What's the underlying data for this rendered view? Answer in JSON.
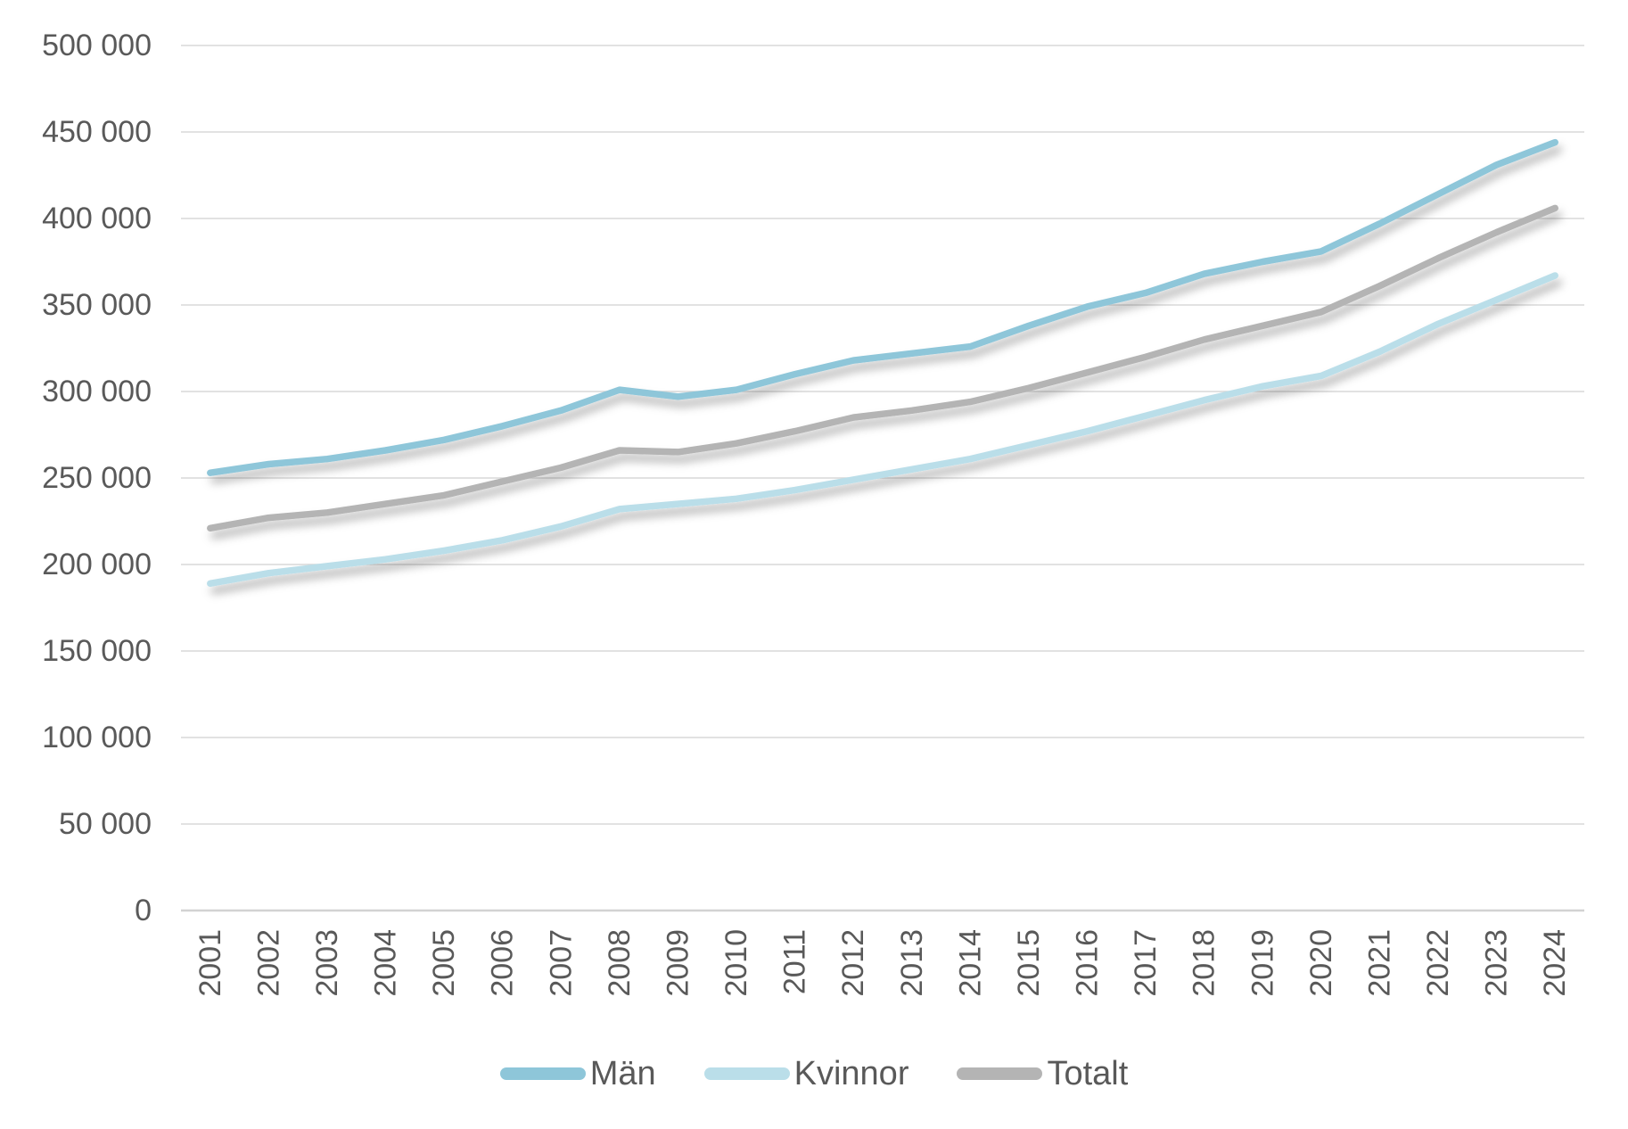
{
  "chart_data": {
    "type": "line",
    "title": "",
    "xlabel": "",
    "ylabel": "",
    "x": [
      2001,
      2002,
      2003,
      2004,
      2005,
      2006,
      2007,
      2008,
      2009,
      2010,
      2011,
      2012,
      2013,
      2014,
      2015,
      2016,
      2017,
      2018,
      2019,
      2020,
      2021,
      2022,
      2023,
      2024
    ],
    "series": [
      {
        "name": "Män",
        "color": "#8EC6D9",
        "values": [
          253000,
          258000,
          261000,
          266000,
          272000,
          280000,
          289000,
          301000,
          297000,
          301000,
          310000,
          318000,
          322000,
          326000,
          338000,
          349000,
          357000,
          368000,
          375000,
          381000,
          397000,
          414000,
          431000,
          444000
        ]
      },
      {
        "name": "Kvinnor",
        "color": "#BADEE9",
        "values": [
          189000,
          195000,
          199000,
          203000,
          208000,
          214000,
          222000,
          232000,
          235000,
          238000,
          243000,
          249000,
          255000,
          261000,
          269000,
          277000,
          286000,
          295000,
          303000,
          309000,
          323000,
          339000,
          353000,
          367000
        ]
      },
      {
        "name": "Totalt",
        "color": "#B4B4B4",
        "values": [
          221000,
          227000,
          230000,
          235000,
          240000,
          248000,
          256000,
          266000,
          265000,
          270000,
          277000,
          285000,
          289000,
          294000,
          302000,
          311000,
          320000,
          330000,
          338000,
          346000,
          361000,
          377000,
          392000,
          406000
        ]
      }
    ],
    "ylim": [
      0,
      500000
    ],
    "ytick_step": 50000,
    "ytick_labels": [
      "0",
      "50 000",
      "100 000",
      "150 000",
      "200 000",
      "250 000",
      "300 000",
      "350 000",
      "400 000",
      "450 000",
      "500 000"
    ],
    "grid": "horizontal",
    "gridline_color": "#D9D9D9",
    "zero_line_color": "#D2D2D2",
    "axis_label_color": "#595959",
    "legend_position": "bottom",
    "line_width": 7.5,
    "shadow": true
  }
}
